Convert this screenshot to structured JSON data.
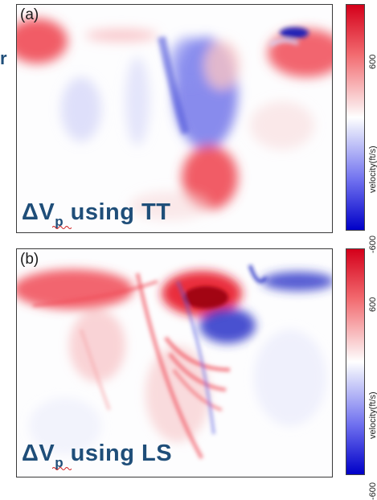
{
  "edge_text": "r",
  "panels": [
    {
      "label": "(a)",
      "caption_main": "ΔV",
      "caption_sub": "p",
      "caption_rest": " using TT",
      "colorbar": {
        "max_label": "600",
        "min_label": "-600",
        "title": "velocity(ft/s)",
        "high_color": "#d4001a",
        "low_color": "#0000c8"
      }
    },
    {
      "label": "(b)",
      "caption_main": "ΔV",
      "caption_sub": "p",
      "caption_rest": " using LS",
      "colorbar": {
        "max_label": "600",
        "min_label": "-600",
        "title": "velocity(ft/s)",
        "high_color": "#d4001a",
        "low_color": "#0000c8"
      }
    }
  ]
}
